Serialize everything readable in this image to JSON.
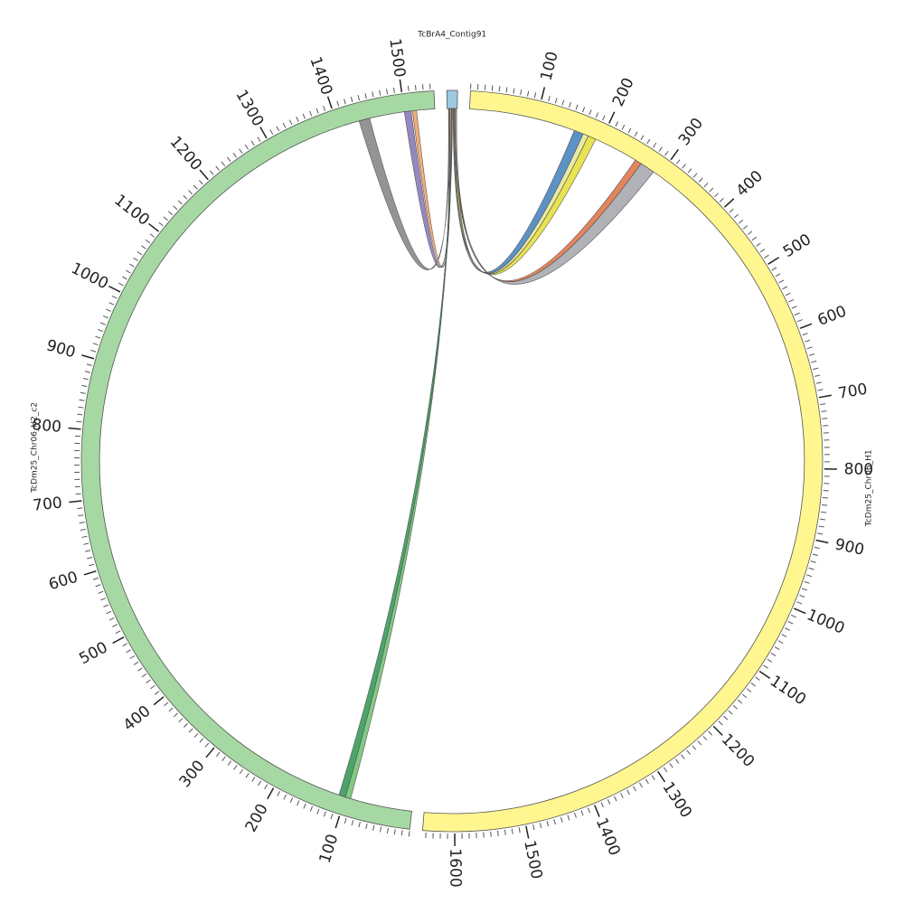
{
  "chart_data": {
    "type": "chord",
    "minor_tick_step": 10,
    "segments": [
      {
        "name": "TcBrA4_Contig91",
        "length": 15,
        "color": "#9ecae1",
        "ticks": []
      },
      {
        "name": "TcDm25_Chr06_H1",
        "length": 1645,
        "color": "#fff68f",
        "ticks": [
          100,
          200,
          300,
          400,
          500,
          600,
          700,
          800,
          900,
          1000,
          1100,
          1200,
          1300,
          1400,
          1500,
          1600
        ]
      },
      {
        "name": "TcDm25_Chr06_H2_c2",
        "length": 1545,
        "color": "#a6d8a4",
        "ticks": [
          100,
          200,
          300,
          400,
          500,
          600,
          700,
          800,
          900,
          1000,
          1100,
          1200,
          1300,
          1400,
          1500
        ]
      }
    ],
    "links": [
      {
        "source": 0,
        "source_start": 9,
        "source_end": 12,
        "target": 1,
        "target_start": 158,
        "target_end": 172,
        "color": "#4a86c0"
      },
      {
        "source": 0,
        "source_start": 10,
        "source_end": 13,
        "target": 1,
        "target_start": 172,
        "target_end": 180,
        "color": "#e8e89a"
      },
      {
        "source": 0,
        "source_start": 11,
        "source_end": 14,
        "target": 1,
        "target_start": 180,
        "target_end": 192,
        "color": "#e6e03c"
      },
      {
        "source": 0,
        "source_start": 11,
        "source_end": 13,
        "target": 1,
        "target_start": 258,
        "target_end": 268,
        "color": "#e0784a"
      },
      {
        "source": 0,
        "source_start": 12,
        "source_end": 14,
        "target": 1,
        "target_start": 268,
        "target_end": 290,
        "color": "#a9a9b0"
      },
      {
        "source": 0,
        "source_start": 2,
        "source_end": 4,
        "target": 2,
        "target_start": 1432,
        "target_end": 1448,
        "color": "#888888"
      },
      {
        "source": 0,
        "source_start": 3,
        "source_end": 5,
        "target": 2,
        "target_start": 1500,
        "target_end": 1510,
        "color": "#8b7bb8"
      },
      {
        "source": 0,
        "source_start": 4,
        "source_end": 6,
        "target": 2,
        "target_start": 1512,
        "target_end": 1518,
        "color": "#f4a46a"
      },
      {
        "source": 0,
        "source_start": 6,
        "source_end": 7,
        "target": 2,
        "target_start": 92,
        "target_end": 100,
        "color": "#74c476"
      },
      {
        "source": 0,
        "source_start": 7,
        "source_end": 8,
        "target": 2,
        "target_start": 100,
        "target_end": 110,
        "color": "#3a9a5a"
      }
    ]
  }
}
